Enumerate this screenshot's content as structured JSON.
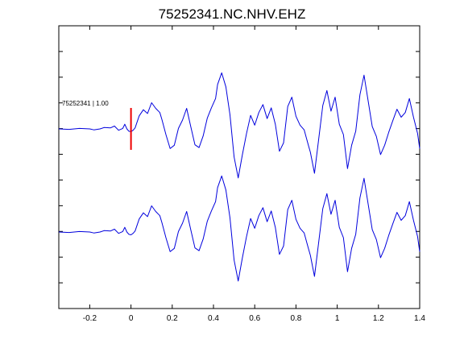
{
  "chart_data": {
    "type": "line",
    "title": "75252341.NC.NHV.EHZ",
    "xlabel": "",
    "ylabel": "",
    "xlim": [
      -0.35,
      1.4
    ],
    "x_ticks": [
      -0.2,
      0,
      0.2,
      0.4,
      0.6,
      0.8,
      1,
      1.2,
      1.4
    ],
    "x_tick_labels": [
      "-0.2",
      "0",
      "0.2",
      "0.4",
      "0.6",
      "0.8",
      "1",
      "1.2",
      "1.4"
    ],
    "y_ticks": 10,
    "y_tick_labels_shown": false,
    "grid": false,
    "line_color": "#0000dd",
    "pick_color": "#ee0000",
    "pick_time": 0,
    "trace_annotation": "75252341 | 1.00",
    "waveform": {
      "x": [
        -0.35,
        -0.3,
        -0.25,
        -0.2,
        -0.18,
        -0.15,
        -0.13,
        -0.1,
        -0.08,
        -0.06,
        -0.04,
        -0.03,
        -0.02,
        -0.01,
        0,
        0.01,
        0.02,
        0.04,
        0.06,
        0.08,
        0.1,
        0.12,
        0.14,
        0.15,
        0.17,
        0.19,
        0.21,
        0.23,
        0.25,
        0.27,
        0.29,
        0.31,
        0.33,
        0.35,
        0.37,
        0.39,
        0.41,
        0.42,
        0.44,
        0.46,
        0.48,
        0.5,
        0.52,
        0.54,
        0.56,
        0.58,
        0.6,
        0.62,
        0.64,
        0.66,
        0.68,
        0.7,
        0.72,
        0.74,
        0.76,
        0.78,
        0.8,
        0.82,
        0.84,
        0.86,
        0.87,
        0.89,
        0.91,
        0.93,
        0.95,
        0.97,
        0.99,
        1.01,
        1.03,
        1.05,
        1.07,
        1.09,
        1.11,
        1.13,
        1.15,
        1.17,
        1.19,
        1.21,
        1.23,
        1.25,
        1.27,
        1.29,
        1.31,
        1.33,
        1.35,
        1.37,
        1.39,
        1.4
      ],
      "y": [
        0.0,
        -0.01,
        0.01,
        0.0,
        -0.02,
        0.0,
        0.03,
        0.02,
        0.06,
        -0.03,
        0.01,
        0.1,
        0.0,
        -0.05,
        -0.06,
        -0.03,
        0.02,
        0.28,
        0.41,
        0.33,
        0.56,
        0.44,
        0.35,
        0.2,
        -0.13,
        -0.42,
        -0.35,
        0.01,
        0.19,
        0.44,
        0.05,
        -0.34,
        -0.4,
        -0.15,
        0.23,
        0.45,
        0.65,
        0.95,
        1.2,
        0.9,
        0.3,
        -0.6,
        -1.05,
        -0.56,
        -0.1,
        0.29,
        0.08,
        0.35,
        0.52,
        0.22,
        0.45,
        0.1,
        -0.48,
        -0.3,
        0.48,
        0.68,
        0.27,
        0.08,
        -0.02,
        -0.35,
        -0.5,
        -0.95,
        -0.22,
        0.5,
        0.82,
        0.38,
        0.68,
        0.1,
        -0.12,
        -0.85,
        -0.35,
        -0.05,
        0.73,
        1.15,
        0.6,
        0.05,
        -0.16,
        -0.55,
        -0.35,
        -0.07,
        0.18,
        0.42,
        0.25,
        0.35,
        0.65,
        0.25,
        -0.1,
        -0.42
      ]
    },
    "traces": [
      {
        "baseline": 0.0
      },
      {
        "baseline": -1.0
      }
    ]
  }
}
